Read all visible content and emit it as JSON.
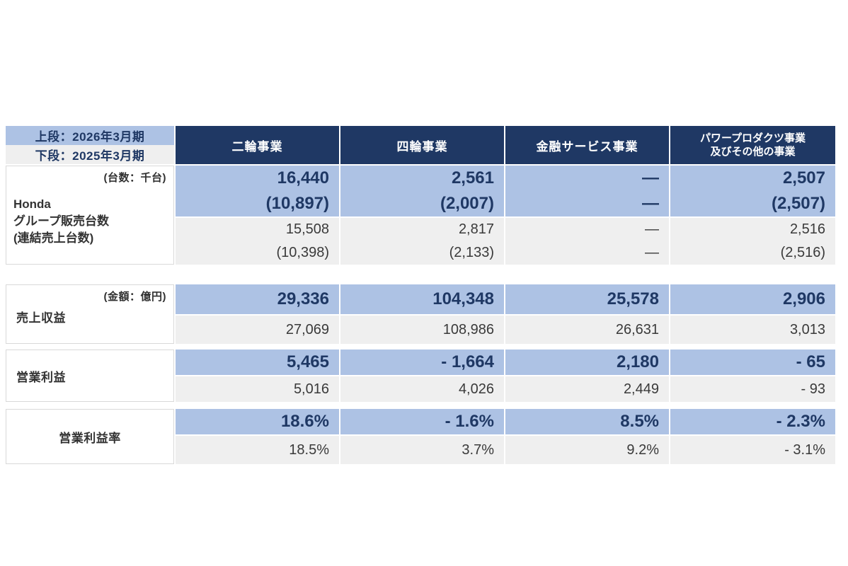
{
  "colors": {
    "header_bg": "#1F3864",
    "header_text": "#FFFFFF",
    "highlight_row_bg": "#ADC2E4",
    "alt_row_bg": "#EFEFEF",
    "number_navy": "#1F3864",
    "number_gray": "#3A3A3A"
  },
  "table": {
    "legend_top": "上段：2026年3月期",
    "legend_bottom": "下段：2025年3月期",
    "columns": [
      "二輪事業",
      "四輪事業",
      "金融サービス事業"
    ],
    "column4_line1": "パワープロダクツ事業",
    "column4_line2": "及びその他の事業"
  },
  "blocks": [
    {
      "unit_note": "(台数：千台)",
      "label_lines": [
        "Honda",
        "グループ販売台数",
        "(連結売上台数)"
      ],
      "current": [
        [
          "16,440",
          "(10,897)"
        ],
        [
          "2,561",
          "(2,007)"
        ],
        [
          "—",
          "—"
        ],
        [
          "2,507",
          "(2,507)"
        ]
      ],
      "previous": [
        [
          "15,508",
          "(10,398)"
        ],
        [
          "2,817",
          "(2,133)"
        ],
        [
          "—",
          "—"
        ],
        [
          "2,516",
          "(2,516)"
        ]
      ]
    },
    {
      "unit_note": "(金額：億円)",
      "label": "売上収益",
      "current": [
        "29,336",
        "104,348",
        "25,578",
        "2,906"
      ],
      "previous": [
        "27,069",
        "108,986",
        "26,631",
        "3,013"
      ]
    },
    {
      "label": "営業利益",
      "current": [
        "5,465",
        "- 1,664",
        "2,180",
        "- 65"
      ],
      "previous": [
        "5,016",
        "4,026",
        "2,449",
        "- 93"
      ]
    },
    {
      "label": "営業利益率",
      "current": [
        "18.6%",
        "- 1.6%",
        "8.5%",
        "- 2.3%"
      ],
      "previous": [
        "18.5%",
        "3.7%",
        "9.2%",
        "- 3.1%"
      ]
    }
  ]
}
